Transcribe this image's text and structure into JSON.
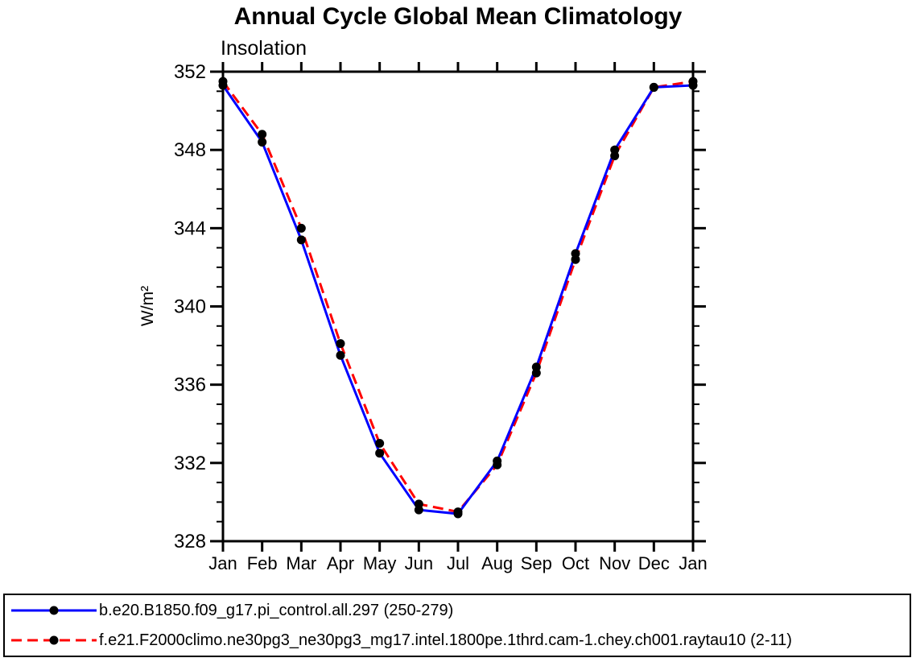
{
  "chart_data": {
    "type": "line",
    "title": "Annual Cycle Global Mean Climatology",
    "subtitle": "Insolation",
    "ylabel": "W/m²",
    "x_categories": [
      "Jan",
      "Feb",
      "Mar",
      "Apr",
      "May",
      "Jun",
      "Jul",
      "Aug",
      "Sep",
      "Oct",
      "Nov",
      "Dec",
      "Jan"
    ],
    "ylim": [
      328,
      352
    ],
    "yticks_major": [
      328,
      332,
      336,
      340,
      344,
      348,
      352
    ],
    "ytick_minor_step": 1,
    "grid": false,
    "legend_position": "bottom",
    "axis_color": "#000000",
    "marker": "filled-circle",
    "marker_color": "#000000",
    "series": [
      {
        "name": "b.e20.B1850.f09_g17.pi_control.all.297 (250-279)",
        "color": "#0000ff",
        "style": "solid",
        "values": [
          351.3,
          348.4,
          343.4,
          337.5,
          332.5,
          329.6,
          329.4,
          332.1,
          336.9,
          342.7,
          348.0,
          351.2,
          351.3
        ]
      },
      {
        "name": "f.e21.F2000climo.ne30pg3_ne30pg3_mg17.intel.1800pe.1thrd.cam-1.chey.ch001.raytau10 (2-11)",
        "color": "#ff0000",
        "style": "dashed",
        "values": [
          351.5,
          348.8,
          344.0,
          338.1,
          333.0,
          329.9,
          329.5,
          331.9,
          336.6,
          342.4,
          347.7,
          351.2,
          351.5
        ]
      }
    ]
  }
}
